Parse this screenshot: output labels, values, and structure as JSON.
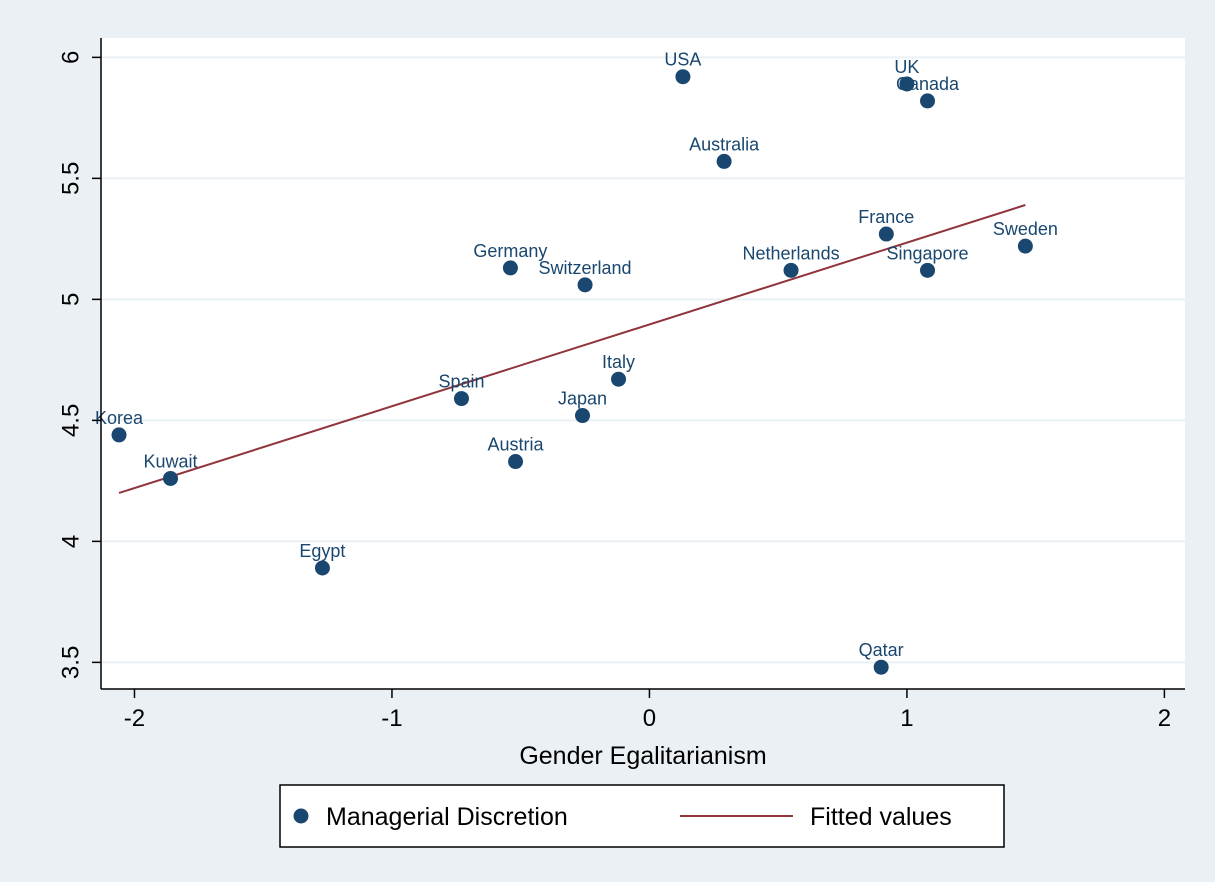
{
  "colors": {
    "outer_background": "#eaf0f4",
    "plot_background": "#ffffff",
    "marker": "#1a476f",
    "label": "#1a476f",
    "fit_line": "#90353b",
    "axis": "#000000",
    "grid": "#eaf0f4"
  },
  "chart_data": {
    "type": "scatter",
    "xlabel": "Gender Egalitarianism",
    "ylabel": "",
    "xlim": [
      -2.13,
      2.08
    ],
    "ylim": [
      3.39,
      6.08
    ],
    "grid": "horizontal",
    "legend_placement": "bottom-center",
    "x_ticks": [
      {
        "value": -2,
        "label": "-2"
      },
      {
        "value": -1,
        "label": "-1"
      },
      {
        "value": 0,
        "label": "0"
      },
      {
        "value": 1,
        "label": "1"
      },
      {
        "value": 2,
        "label": "2"
      }
    ],
    "y_ticks": [
      {
        "value": 3.5,
        "label": "3.5"
      },
      {
        "value": 4,
        "label": "4"
      },
      {
        "value": 4.5,
        "label": "4.5"
      },
      {
        "value": 5,
        "label": "5"
      },
      {
        "value": 5.5,
        "label": "5.5"
      },
      {
        "value": 6,
        "label": "6"
      }
    ],
    "series": [
      {
        "name": "Managerial Discretion",
        "kind": "scatter",
        "points": [
          {
            "label": "USA",
            "x": 0.13,
            "y": 5.92
          },
          {
            "label": "UK",
            "x": 1.0,
            "y": 5.89
          },
          {
            "label": "Canada",
            "x": 1.08,
            "y": 5.82
          },
          {
            "label": "Australia",
            "x": 0.29,
            "y": 5.57
          },
          {
            "label": "France",
            "x": 0.92,
            "y": 5.27
          },
          {
            "label": "Sweden",
            "x": 1.46,
            "y": 5.22
          },
          {
            "label": "Netherlands",
            "x": 0.55,
            "y": 5.12
          },
          {
            "label": "Singapore",
            "x": 1.08,
            "y": 5.12
          },
          {
            "label": "Germany",
            "x": -0.54,
            "y": 5.13
          },
          {
            "label": "Switzerland",
            "x": -0.25,
            "y": 5.06
          },
          {
            "label": "Italy",
            "x": -0.12,
            "y": 4.67
          },
          {
            "label": "Spain",
            "x": -0.73,
            "y": 4.59
          },
          {
            "label": "Japan",
            "x": -0.26,
            "y": 4.52
          },
          {
            "label": "Korea",
            "x": -2.06,
            "y": 4.44
          },
          {
            "label": "Austria",
            "x": -0.52,
            "y": 4.33
          },
          {
            "label": "Kuwait",
            "x": -1.86,
            "y": 4.26
          },
          {
            "label": "Egypt",
            "x": -1.27,
            "y": 3.89
          },
          {
            "label": "Qatar",
            "x": 0.9,
            "y": 3.48
          }
        ]
      },
      {
        "name": "Fitted values",
        "kind": "line",
        "x": [
          -2.06,
          1.46
        ],
        "y": [
          4.2,
          5.39
        ]
      }
    ]
  }
}
